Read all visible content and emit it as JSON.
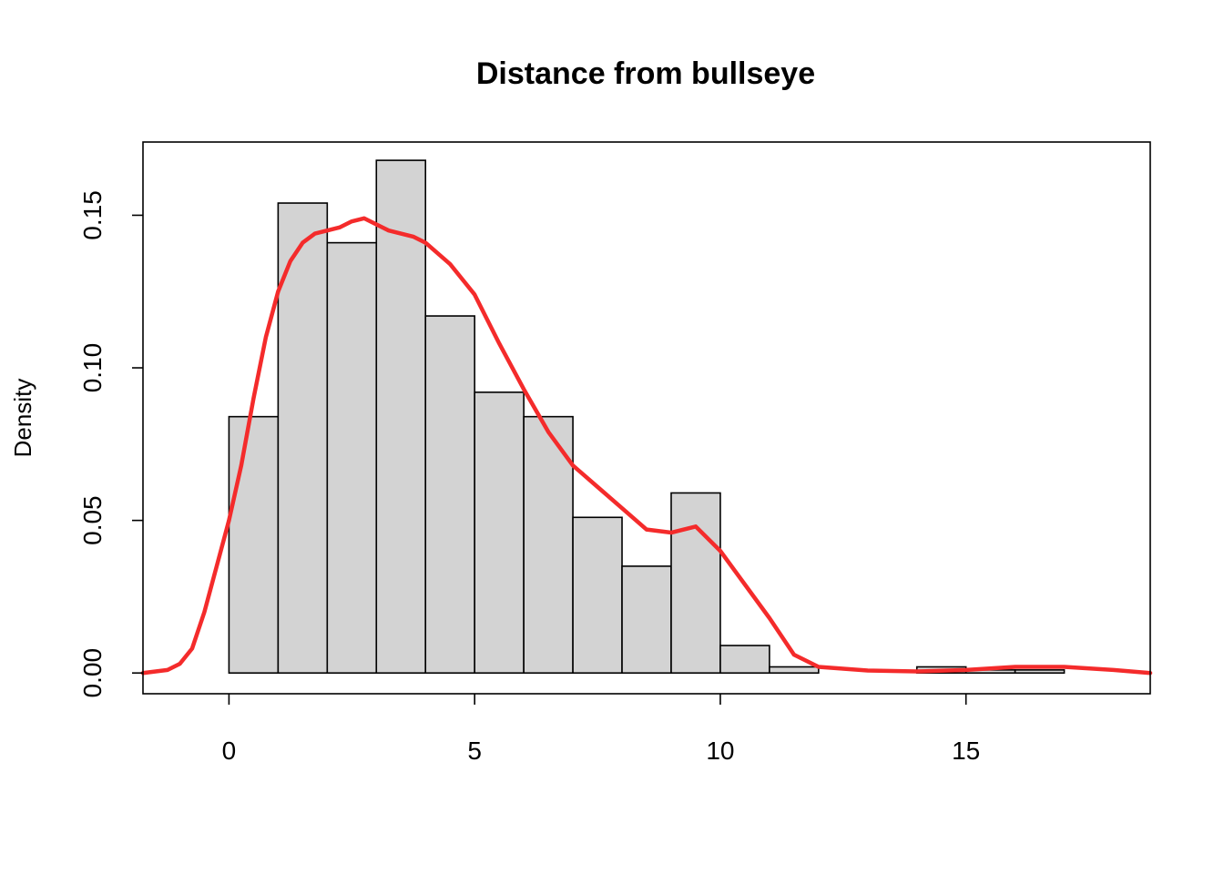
{
  "chart_data": {
    "type": "bar",
    "title": "Distance from bullseye",
    "xlabel": "",
    "ylabel": "Density",
    "xlim": [
      -1.75,
      18.75
    ],
    "ylim": [
      -0.0068,
      0.174
    ],
    "bin_edges": [
      0,
      1,
      2,
      3,
      4,
      5,
      6,
      7,
      8,
      9,
      10,
      11,
      12,
      13,
      14,
      15,
      16,
      17
    ],
    "values": [
      0.084,
      0.154,
      0.141,
      0.168,
      0.117,
      0.092,
      0.084,
      0.051,
      0.035,
      0.059,
      0.009,
      0.002,
      0,
      0,
      0.002,
      0.001,
      0.001
    ],
    "x_ticks": [
      0,
      5,
      10,
      15
    ],
    "x_tick_labels": [
      "0",
      "5",
      "10",
      "15"
    ],
    "y_ticks": [
      0,
      0.05,
      0.1,
      0.15
    ],
    "y_tick_labels": [
      "0.00",
      "0.05",
      "0.10",
      "0.15"
    ],
    "grid": false,
    "bar_fill_color": "#d3d3d3",
    "bar_edge_color": "#000000",
    "density_curve": {
      "color": "#f42b2b",
      "x": [
        -1.75,
        -1.25,
        -1.0,
        -0.75,
        -0.5,
        -0.25,
        0,
        0.25,
        0.5,
        0.75,
        1.0,
        1.25,
        1.5,
        1.75,
        2.0,
        2.25,
        2.5,
        2.75,
        3.0,
        3.25,
        3.5,
        3.75,
        4.0,
        4.5,
        5.0,
        5.5,
        6.0,
        6.5,
        7.0,
        7.5,
        8.0,
        8.5,
        9.0,
        9.5,
        10.0,
        10.5,
        11.0,
        11.5,
        12.0,
        13.0,
        14.0,
        15.0,
        16.0,
        17.0,
        18.0,
        18.75
      ],
      "y": [
        0.0,
        0.001,
        0.003,
        0.008,
        0.02,
        0.035,
        0.05,
        0.068,
        0.09,
        0.11,
        0.125,
        0.135,
        0.141,
        0.144,
        0.145,
        0.146,
        0.148,
        0.149,
        0.147,
        0.145,
        0.144,
        0.143,
        0.141,
        0.134,
        0.124,
        0.108,
        0.093,
        0.079,
        0.068,
        0.061,
        0.054,
        0.047,
        0.046,
        0.048,
        0.04,
        0.029,
        0.018,
        0.006,
        0.002,
        0.0008,
        0.0005,
        0.001,
        0.002,
        0.002,
        0.001,
        0.0
      ]
    }
  }
}
